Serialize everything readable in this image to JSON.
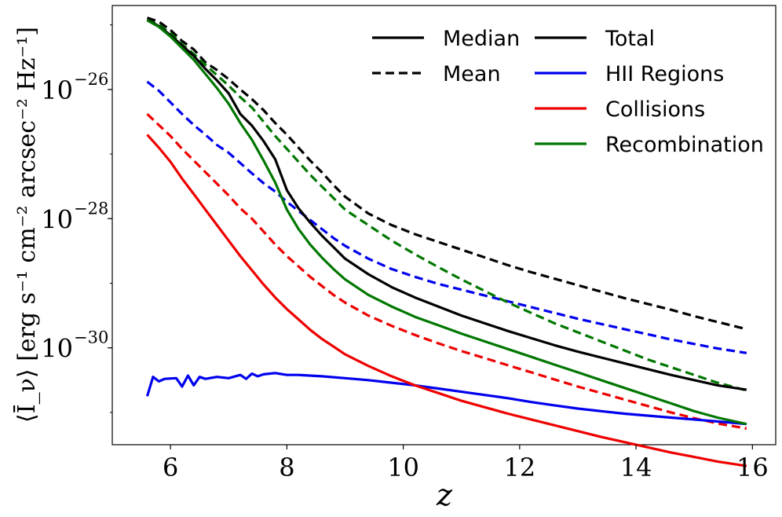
{
  "chart_data": {
    "type": "line",
    "title": "",
    "xlabel": "z",
    "ylabel": "⟨Ī_ν⟩ [erg s⁻¹ cm⁻² arcsec⁻² Hz⁻¹]",
    "xlim": [
      5.0,
      16.4
    ],
    "ylim_log10": [
      -31.5,
      -24.7
    ],
    "yscale": "log",
    "xticks": [
      6,
      8,
      10,
      12,
      14,
      16
    ],
    "xtick_labels": [
      "6",
      "8",
      "10",
      "12",
      "14",
      "16"
    ],
    "yticks_log10": [
      -26,
      -28,
      -30
    ],
    "ytick_labels": [
      {
        "base": "10",
        "exp": "−26"
      },
      {
        "base": "10",
        "exp": "−28"
      },
      {
        "base": "10",
        "exp": "−30"
      }
    ],
    "legend_style": [
      {
        "label": "Median",
        "color": "#000000",
        "dash": "solid"
      },
      {
        "label": "Mean",
        "color": "#000000",
        "dash": "dashed"
      }
    ],
    "legend_component": [
      {
        "label": "Total",
        "color": "#000000"
      },
      {
        "label": "HII Regions",
        "color": "#0000ee"
      },
      {
        "label": "Collisions",
        "color": "#ee0000"
      },
      {
        "label": "Recombination",
        "color": "#007700"
      }
    ],
    "series": [
      {
        "name": "Total (Mean)",
        "color": "#000000",
        "dash": "dashed",
        "x": [
          5.6,
          5.8,
          6.0,
          6.2,
          6.4,
          6.6,
          6.8,
          7.0,
          7.2,
          7.4,
          7.6,
          7.8,
          8.0,
          8.2,
          8.4,
          8.6,
          8.8,
          9.0,
          9.4,
          9.8,
          10.2,
          10.6,
          11.0,
          11.4,
          11.8,
          12.2,
          12.6,
          13.0,
          13.4,
          13.8,
          14.2,
          14.6,
          15.0,
          15.4,
          15.9
        ],
        "log10_y": [
          -24.89,
          -24.95,
          -25.08,
          -25.25,
          -25.38,
          -25.58,
          -25.7,
          -25.84,
          -26.0,
          -26.15,
          -26.32,
          -26.52,
          -26.7,
          -26.9,
          -27.1,
          -27.28,
          -27.48,
          -27.66,
          -27.92,
          -28.1,
          -28.24,
          -28.36,
          -28.48,
          -28.6,
          -28.72,
          -28.83,
          -28.93,
          -29.03,
          -29.13,
          -29.23,
          -29.32,
          -29.41,
          -29.51,
          -29.6,
          -29.71
        ]
      },
      {
        "name": "HII Regions (Mean)",
        "color": "#0000ee",
        "dash": "dashed",
        "x": [
          5.6,
          5.8,
          6.0,
          6.2,
          6.4,
          6.6,
          6.8,
          7.0,
          7.2,
          7.4,
          7.6,
          7.8,
          8.0,
          8.2,
          8.4,
          8.6,
          8.8,
          9.0,
          9.4,
          9.8,
          10.2,
          10.6,
          11.0,
          11.4,
          11.8,
          12.2,
          12.6,
          13.0,
          13.4,
          13.8,
          14.2,
          14.6,
          15.0,
          15.4,
          15.9
        ],
        "log10_y": [
          -25.88,
          -26.02,
          -26.2,
          -26.38,
          -26.55,
          -26.7,
          -26.86,
          -26.98,
          -27.14,
          -27.3,
          -27.45,
          -27.58,
          -27.74,
          -27.88,
          -28.02,
          -28.16,
          -28.3,
          -28.42,
          -28.62,
          -28.78,
          -28.9,
          -29.01,
          -29.1,
          -29.19,
          -29.28,
          -29.37,
          -29.46,
          -29.55,
          -29.63,
          -29.71,
          -29.79,
          -29.87,
          -29.94,
          -30.01,
          -30.08
        ]
      },
      {
        "name": "Collisions (Mean)",
        "color": "#ee0000",
        "dash": "dashed",
        "x": [
          5.6,
          5.8,
          6.0,
          6.2,
          6.4,
          6.6,
          6.8,
          7.0,
          7.2,
          7.4,
          7.6,
          7.8,
          8.0,
          8.2,
          8.4,
          8.6,
          8.8,
          9.0,
          9.4,
          9.8,
          10.2,
          10.6,
          11.0,
          11.4,
          11.8,
          12.2,
          12.6,
          13.0,
          13.4,
          13.8,
          14.2,
          14.6,
          15.0,
          15.4,
          15.9
        ],
        "log10_y": [
          -26.38,
          -26.55,
          -26.72,
          -26.92,
          -27.1,
          -27.28,
          -27.46,
          -27.64,
          -27.84,
          -28.0,
          -28.2,
          -28.4,
          -28.58,
          -28.74,
          -28.9,
          -29.04,
          -29.18,
          -29.3,
          -29.5,
          -29.66,
          -29.8,
          -29.93,
          -30.05,
          -30.16,
          -30.27,
          -30.38,
          -30.49,
          -30.6,
          -30.7,
          -30.8,
          -30.9,
          -31.0,
          -31.09,
          -31.17,
          -31.25
        ]
      },
      {
        "name": "Recombination (Mean)",
        "color": "#007700",
        "dash": "dashed",
        "x": [
          5.6,
          5.8,
          6.0,
          6.2,
          6.4,
          6.6,
          6.8,
          7.0,
          7.2,
          7.4,
          7.6,
          7.8,
          8.0,
          8.2,
          8.4,
          8.6,
          8.8,
          9.0,
          9.4,
          9.8,
          10.2,
          10.6,
          11.0,
          11.4,
          11.8,
          12.2,
          12.6,
          13.0,
          13.4,
          13.8,
          14.2,
          14.6,
          15.0,
          15.4,
          15.9
        ],
        "log10_y": [
          -24.92,
          -25.0,
          -25.13,
          -25.3,
          -25.45,
          -25.62,
          -25.78,
          -25.94,
          -26.12,
          -26.28,
          -26.5,
          -26.72,
          -26.92,
          -27.12,
          -27.32,
          -27.5,
          -27.68,
          -27.86,
          -28.1,
          -28.34,
          -28.55,
          -28.75,
          -28.94,
          -29.12,
          -29.3,
          -29.46,
          -29.62,
          -29.76,
          -29.9,
          -30.04,
          -30.18,
          -30.3,
          -30.42,
          -30.54,
          -30.66
        ]
      },
      {
        "name": "Total (Median)",
        "color": "#000000",
        "dash": "solid",
        "x": [
          5.6,
          5.8,
          6.0,
          6.2,
          6.4,
          6.6,
          6.8,
          7.0,
          7.2,
          7.4,
          7.6,
          7.8,
          8.0,
          8.2,
          8.4,
          8.6,
          8.8,
          9.0,
          9.4,
          9.8,
          10.2,
          10.6,
          11.0,
          11.4,
          11.8,
          12.2,
          12.6,
          13.0,
          13.4,
          13.8,
          14.2,
          14.6,
          15.0,
          15.4,
          15.9
        ],
        "log10_y": [
          -24.92,
          -25.02,
          -25.16,
          -25.32,
          -25.48,
          -25.68,
          -25.86,
          -26.06,
          -26.38,
          -26.56,
          -26.8,
          -27.08,
          -27.56,
          -27.84,
          -28.06,
          -28.26,
          -28.44,
          -28.62,
          -28.86,
          -29.06,
          -29.22,
          -29.36,
          -29.5,
          -29.62,
          -29.74,
          -29.85,
          -29.96,
          -30.06,
          -30.15,
          -30.24,
          -30.33,
          -30.42,
          -30.5,
          -30.58,
          -30.65
        ]
      },
      {
        "name": "HII Regions (Median)",
        "color": "#0000ee",
        "dash": "solid",
        "x": [
          5.6,
          5.7,
          5.8,
          5.9,
          6.1,
          6.2,
          6.3,
          6.4,
          6.5,
          6.6,
          6.8,
          7.0,
          7.2,
          7.3,
          7.4,
          7.5,
          7.6,
          7.8,
          8.0,
          8.2,
          8.6,
          9.0,
          9.4,
          9.8,
          10.2,
          10.6,
          11.0,
          11.4,
          11.8,
          12.2,
          12.6,
          13.0,
          13.4,
          13.8,
          14.2,
          14.6,
          15.0,
          15.4,
          15.9
        ],
        "log10_y": [
          -30.75,
          -30.45,
          -30.52,
          -30.48,
          -30.47,
          -30.6,
          -30.43,
          -30.58,
          -30.45,
          -30.48,
          -30.45,
          -30.47,
          -30.42,
          -30.48,
          -30.4,
          -30.44,
          -30.41,
          -30.39,
          -30.42,
          -30.42,
          -30.44,
          -30.47,
          -30.5,
          -30.54,
          -30.58,
          -30.63,
          -30.68,
          -30.73,
          -30.78,
          -30.84,
          -30.89,
          -30.94,
          -30.98,
          -31.02,
          -31.05,
          -31.08,
          -31.11,
          -31.14,
          -31.18
        ]
      },
      {
        "name": "Collisions (Median)",
        "color": "#ee0000",
        "dash": "solid",
        "x": [
          5.6,
          5.8,
          6.0,
          6.2,
          6.4,
          6.6,
          6.8,
          7.0,
          7.2,
          7.4,
          7.6,
          7.8,
          8.0,
          8.2,
          8.4,
          8.6,
          8.8,
          9.0,
          9.4,
          9.8,
          10.2,
          10.6,
          11.0,
          11.4,
          11.8,
          12.2,
          12.6,
          13.0,
          13.4,
          13.8,
          14.2,
          14.6,
          15.0,
          15.4,
          15.9
        ],
        "log10_y": [
          -26.7,
          -26.9,
          -27.12,
          -27.38,
          -27.62,
          -27.86,
          -28.1,
          -28.34,
          -28.58,
          -28.8,
          -29.02,
          -29.22,
          -29.4,
          -29.56,
          -29.72,
          -29.86,
          -29.98,
          -30.1,
          -30.28,
          -30.44,
          -30.58,
          -30.7,
          -30.82,
          -30.92,
          -31.02,
          -31.11,
          -31.2,
          -31.29,
          -31.38,
          -31.46,
          -31.54,
          -31.62,
          -31.69,
          -31.76,
          -31.83
        ]
      },
      {
        "name": "Recombination (Median)",
        "color": "#007700",
        "dash": "solid",
        "x": [
          5.6,
          5.8,
          6.0,
          6.2,
          6.4,
          6.6,
          6.8,
          7.0,
          7.2,
          7.4,
          7.6,
          7.8,
          8.0,
          8.2,
          8.4,
          8.6,
          8.8,
          9.0,
          9.4,
          9.8,
          10.2,
          10.6,
          11.0,
          11.4,
          11.8,
          12.2,
          12.6,
          13.0,
          13.4,
          13.8,
          14.2,
          14.6,
          15.0,
          15.4,
          15.9
        ],
        "log10_y": [
          -24.93,
          -25.03,
          -25.18,
          -25.36,
          -25.54,
          -25.76,
          -25.98,
          -26.22,
          -26.52,
          -26.78,
          -27.1,
          -27.44,
          -27.86,
          -28.16,
          -28.4,
          -28.6,
          -28.78,
          -28.94,
          -29.18,
          -29.36,
          -29.52,
          -29.65,
          -29.78,
          -29.9,
          -30.02,
          -30.14,
          -30.26,
          -30.38,
          -30.5,
          -30.62,
          -30.74,
          -30.86,
          -30.98,
          -31.08,
          -31.18
        ]
      }
    ]
  }
}
